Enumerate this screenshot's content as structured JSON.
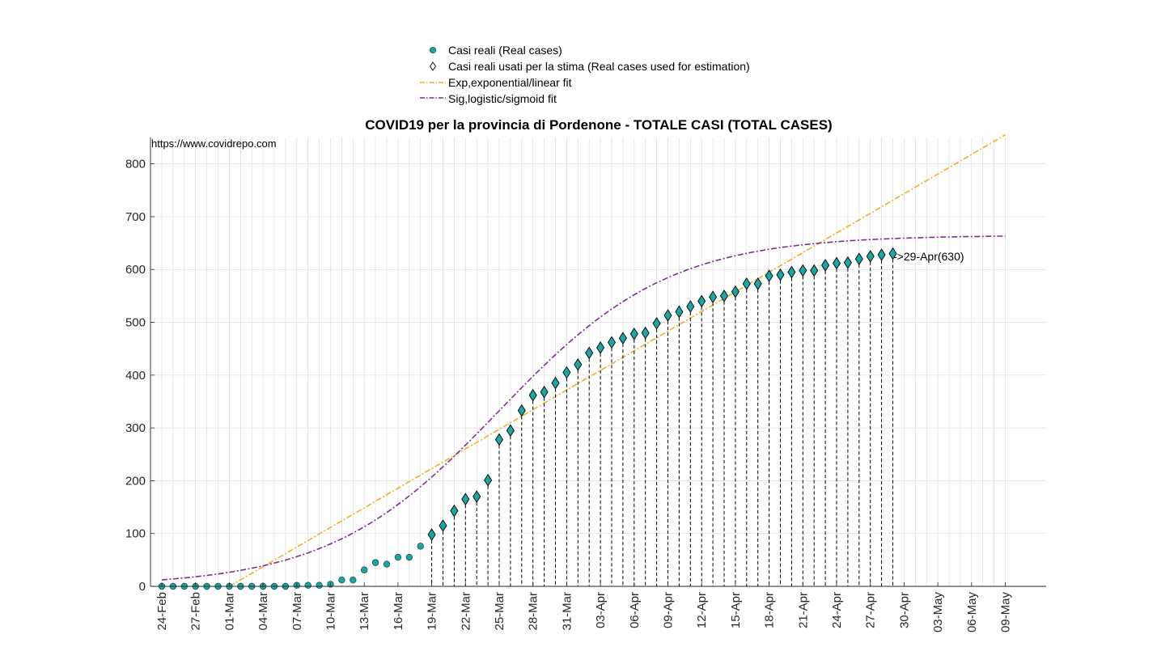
{
  "chart_data": {
    "type": "scatter",
    "title": "COVID19 per la provincia di Pordenone - TOTALE CASI (TOTAL CASES)",
    "watermark": "https://www.covidrepo.com",
    "annotation": "->29-Apr(630)",
    "xlabel": "",
    "ylabel": "",
    "ylim": [
      0,
      850
    ],
    "yticks": [
      0,
      100,
      200,
      300,
      400,
      500,
      600,
      700,
      800
    ],
    "x_start_date": "24-Feb",
    "x_days": 76,
    "xtick_labels": [
      "24-Feb",
      "27-Feb",
      "01-Mar",
      "04-Mar",
      "07-Mar",
      "10-Mar",
      "13-Mar",
      "16-Mar",
      "19-Mar",
      "22-Mar",
      "25-Mar",
      "28-Mar",
      "31-Mar",
      "03-Apr",
      "06-Apr",
      "09-Apr",
      "12-Apr",
      "15-Apr",
      "18-Apr",
      "21-Apr",
      "24-Apr",
      "27-Apr",
      "30-Apr",
      "03-May",
      "06-May",
      "09-May"
    ],
    "grid": true,
    "legend_position": "top",
    "colors": {
      "real": "#1aa6a6",
      "real_edge": "#1f4d4d",
      "used": "#000000",
      "exp": "#edb120",
      "sig": "#7e2f8e",
      "dashed_drop": "#000000",
      "grid": "#dcdcdc"
    },
    "legend": [
      {
        "marker": "circle",
        "label": "Casi reali (Real cases)"
      },
      {
        "marker": "diamond",
        "label": "Casi reali usati per la stima (Real cases used for estimation)"
      },
      {
        "marker": "line-exp",
        "label": "Exp,exponential/linear fit"
      },
      {
        "marker": "line-sig",
        "label": "Sig,logistic/sigmoid fit"
      }
    ],
    "series": [
      {
        "name": "Casi reali (Real cases)",
        "x": [
          "24-Feb",
          "25-Feb",
          "26-Feb",
          "27-Feb",
          "28-Feb",
          "29-Feb",
          "01-Mar",
          "02-Mar",
          "03-Mar",
          "04-Mar",
          "05-Mar",
          "06-Mar",
          "07-Mar",
          "08-Mar",
          "09-Mar",
          "10-Mar",
          "11-Mar",
          "12-Mar",
          "13-Mar",
          "14-Mar",
          "15-Mar",
          "16-Mar",
          "17-Mar",
          "18-Mar",
          "19-Mar",
          "20-Mar",
          "21-Mar",
          "22-Mar",
          "23-Mar",
          "24-Mar",
          "25-Mar",
          "26-Mar",
          "27-Mar",
          "28-Mar",
          "29-Mar",
          "30-Mar",
          "31-Mar",
          "01-Apr",
          "02-Apr",
          "03-Apr",
          "04-Apr",
          "05-Apr",
          "06-Apr",
          "07-Apr",
          "08-Apr",
          "09-Apr",
          "10-Apr",
          "11-Apr",
          "12-Apr",
          "13-Apr",
          "14-Apr",
          "15-Apr",
          "16-Apr",
          "17-Apr",
          "18-Apr",
          "19-Apr",
          "20-Apr",
          "21-Apr",
          "22-Apr",
          "23-Apr",
          "24-Apr",
          "25-Apr",
          "26-Apr",
          "27-Apr",
          "28-Apr",
          "29-Apr"
        ],
        "values": [
          0,
          0,
          0,
          0,
          0,
          0,
          0,
          0,
          0,
          0,
          0,
          0,
          2,
          2,
          2,
          4,
          12,
          12,
          31,
          45,
          42,
          55,
          55,
          76,
          98,
          115,
          143,
          165,
          170,
          201,
          278,
          295,
          333,
          362,
          368,
          385,
          405,
          420,
          442,
          452,
          462,
          470,
          478,
          480,
          498,
          513,
          520,
          530,
          540,
          548,
          550,
          558,
          573,
          573,
          588,
          590,
          595,
          598,
          598,
          608,
          612,
          613,
          620,
          625,
          628,
          630
        ]
      },
      {
        "name": "Casi reali usati per la stima (Real cases used for estimation)",
        "x": [
          "19-Mar",
          "29-Apr"
        ]
      },
      {
        "name": "Exp,exponential/linear fit",
        "x": [
          "01-Mar",
          "09-May"
        ],
        "values": [
          0,
          855
        ]
      },
      {
        "name": "Sig,logistic/sigmoid fit",
        "model": "logistic",
        "K": 665,
        "midpoint": "25-Mar",
        "rate": 0.1323,
        "x_range": [
          "24-Feb",
          "09-May"
        ]
      }
    ]
  }
}
